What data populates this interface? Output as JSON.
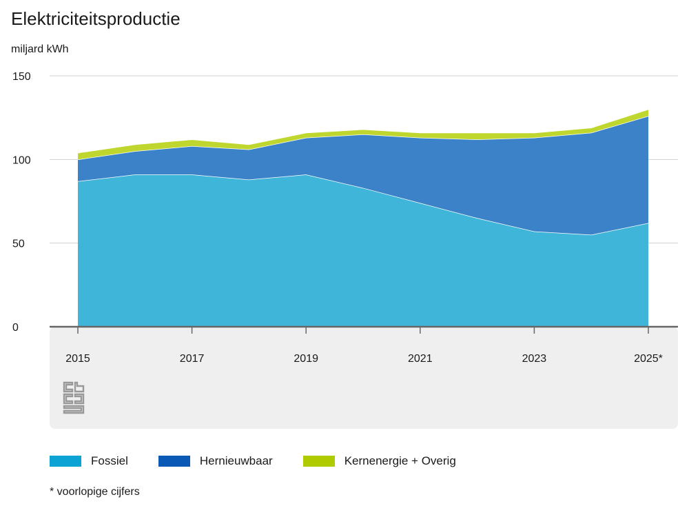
{
  "title": "Elektriciteitsproductie",
  "unit_label": "miljard kWh",
  "footnote": "* voorlopige cijfers",
  "colors": {
    "fossiel": "#40b5da",
    "hernieuwbaar": "#3b82c8",
    "kernenergie": "#bfd62e",
    "axis_panel": "#efefef",
    "gridline": "#d0d0d0",
    "baseline": "#666666"
  },
  "chart_data": {
    "type": "area",
    "stacked": true,
    "title": "Elektriciteitsproductie",
    "ylabel": "miljard kWh",
    "xlabel": "",
    "ylim": [
      0,
      150
    ],
    "yticks": [
      0,
      50,
      100,
      150
    ],
    "x": [
      2015,
      2016,
      2017,
      2018,
      2019,
      2020,
      2021,
      2022,
      2023,
      2024,
      2025
    ],
    "xtick_labels": [
      "2015",
      "2017",
      "2019",
      "2021",
      "2023",
      "2025*"
    ],
    "xtick_years": [
      2015,
      2017,
      2019,
      2021,
      2023,
      2025
    ],
    "grid": true,
    "legend_position": "bottom",
    "series": [
      {
        "name": "Fossiel",
        "color": "#40b5da",
        "values": [
          87,
          91,
          91,
          88,
          91,
          83,
          74,
          65,
          57,
          55,
          62
        ]
      },
      {
        "name": "Hernieuwbaar",
        "color": "#3b82c8",
        "values": [
          13,
          14,
          17,
          18,
          22,
          32,
          39,
          47,
          56,
          61,
          64
        ]
      },
      {
        "name": "Kernenergie + Overig",
        "color": "#bfd62e",
        "values": [
          4,
          4,
          4,
          3,
          3,
          3,
          3,
          4,
          3,
          3,
          4
        ]
      }
    ]
  }
}
